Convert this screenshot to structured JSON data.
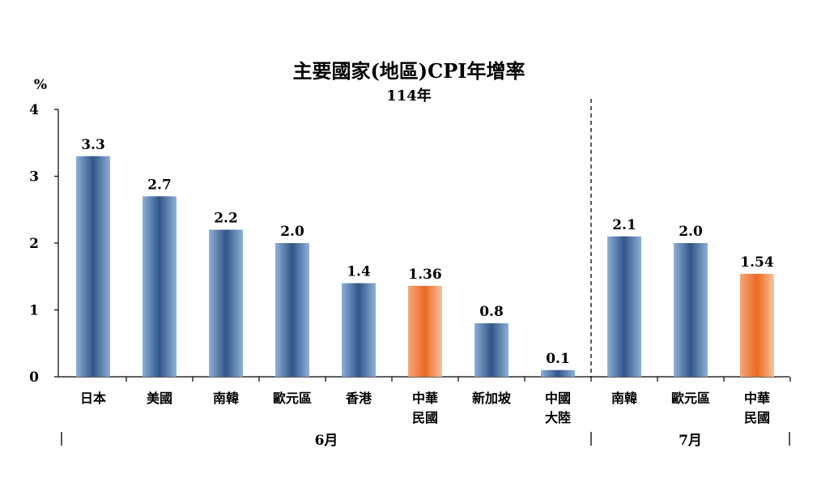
{
  "chart_data": {
    "type": "bar",
    "title": "主要國家(地區)CPI年增率",
    "subtitle": "114年",
    "ylabel": "%",
    "ylim": [
      0,
      4
    ],
    "yticks": [
      "0",
      "1",
      "2",
      "3",
      "4"
    ],
    "grid": false,
    "bar_colors": {
      "normal": "#4a6fa5",
      "highlight": "#f07b3a"
    },
    "groups": [
      {
        "label": "6月",
        "bars": [
          {
            "lines": [
              "日本"
            ],
            "value": 3.3,
            "label": "3.3",
            "highlight": false
          },
          {
            "lines": [
              "美國"
            ],
            "value": 2.7,
            "label": "2.7",
            "highlight": false
          },
          {
            "lines": [
              "南韓"
            ],
            "value": 2.2,
            "label": "2.2",
            "highlight": false
          },
          {
            "lines": [
              "歐元區"
            ],
            "value": 2.0,
            "label": "2.0",
            "highlight": false
          },
          {
            "lines": [
              "香港"
            ],
            "value": 1.4,
            "label": "1.4",
            "highlight": false
          },
          {
            "lines": [
              "中華",
              "民國"
            ],
            "value": 1.36,
            "label": "1.36",
            "highlight": true
          },
          {
            "lines": [
              "新加坡"
            ],
            "value": 0.8,
            "label": "0.8",
            "highlight": false
          },
          {
            "lines": [
              "中國",
              "大陸"
            ],
            "value": 0.1,
            "label": "0.1",
            "highlight": false
          }
        ]
      },
      {
        "label": "7月",
        "bars": [
          {
            "lines": [
              "南韓"
            ],
            "value": 2.1,
            "label": "2.1",
            "highlight": false
          },
          {
            "lines": [
              "歐元區"
            ],
            "value": 2.0,
            "label": "2.0",
            "highlight": false
          },
          {
            "lines": [
              "中華",
              "民國"
            ],
            "value": 1.54,
            "label": "1.54",
            "highlight": true
          }
        ]
      }
    ]
  }
}
